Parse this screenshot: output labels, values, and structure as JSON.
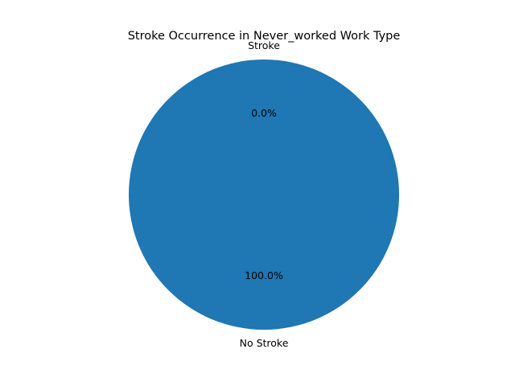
{
  "chart_data": {
    "type": "pie",
    "title": "Stroke Occurrence in Never_worked Work Type",
    "categories": [
      "No Stroke",
      "Stroke"
    ],
    "values": [
      100.0,
      0.0
    ],
    "percent_labels": [
      "100.0%",
      "0.0%"
    ],
    "colors": [
      "#1f77b4",
      "#ff7f0e"
    ],
    "start_angle_deg": 90
  }
}
